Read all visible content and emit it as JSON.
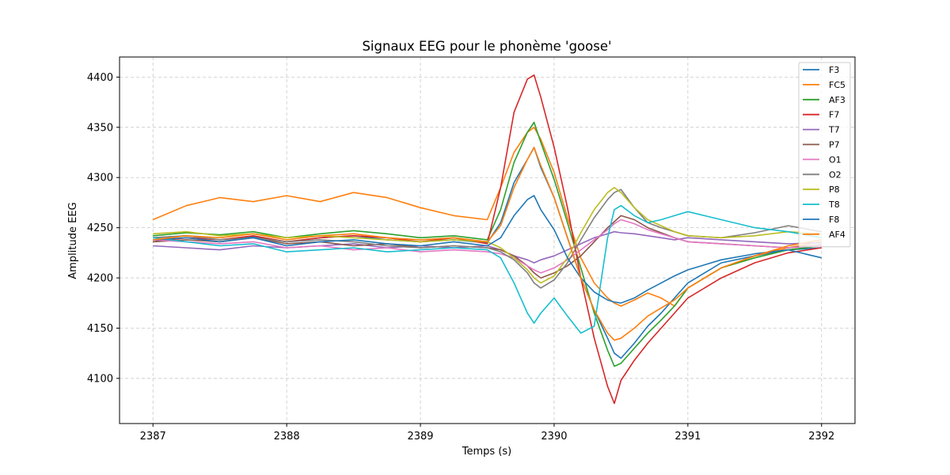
{
  "chart_data": {
    "type": "line",
    "title": "Signaux EEG pour le phonème 'goose'",
    "xlabel": "Temps (s)",
    "ylabel": "Amplitude EEG",
    "xlim": [
      2386.75,
      2392.25
    ],
    "ylim": [
      4055,
      4420
    ],
    "xticks": [
      2387,
      2388,
      2389,
      2390,
      2391,
      2392
    ],
    "yticks": [
      4100,
      4150,
      4200,
      4250,
      4300,
      4350,
      4400
    ],
    "grid": true,
    "legend_position": "top-right",
    "x": [
      2387.0,
      2387.25,
      2387.5,
      2387.75,
      2388.0,
      2388.25,
      2388.5,
      2388.75,
      2389.0,
      2389.25,
      2389.5,
      2389.6,
      2389.7,
      2389.8,
      2389.85,
      2389.9,
      2390.0,
      2390.1,
      2390.2,
      2390.3,
      2390.4,
      2390.45,
      2390.5,
      2390.6,
      2390.7,
      2390.8,
      2390.9,
      2391.0,
      2391.25,
      2391.5,
      2391.75,
      2392.0
    ],
    "series": [
      {
        "name": "F3",
        "color": "#1f77b4",
        "values": [
          4240,
          4242,
          4238,
          4241,
          4236,
          4240,
          4242,
          4238,
          4236,
          4238,
          4235,
          4255,
          4295,
          4318,
          4330,
          4310,
          4280,
          4240,
          4200,
          4168,
          4140,
          4125,
          4120,
          4135,
          4152,
          4165,
          4180,
          4195,
          4215,
          4222,
          4228,
          4230
        ]
      },
      {
        "name": "FC5",
        "color": "#ff7f0e",
        "values": [
          4258,
          4272,
          4280,
          4276,
          4282,
          4276,
          4285,
          4280,
          4270,
          4262,
          4258,
          4290,
          4325,
          4345,
          4350,
          4338,
          4305,
          4260,
          4220,
          4195,
          4180,
          4175,
          4172,
          4178,
          4185,
          4180,
          4172,
          4190,
          4210,
          4222,
          4230,
          4236
        ]
      },
      {
        "name": "AF3",
        "color": "#2ca02c",
        "values": [
          4242,
          4245,
          4243,
          4246,
          4240,
          4244,
          4247,
          4244,
          4240,
          4242,
          4238,
          4268,
          4315,
          4345,
          4355,
          4335,
          4298,
          4255,
          4210,
          4165,
          4128,
          4112,
          4115,
          4130,
          4145,
          4158,
          4172,
          4190,
          4210,
          4220,
          4228,
          4232
        ]
      },
      {
        "name": "F7",
        "color": "#d62728",
        "values": [
          4236,
          4240,
          4238,
          4242,
          4236,
          4240,
          4242,
          4240,
          4236,
          4240,
          4234,
          4290,
          4365,
          4398,
          4402,
          4380,
          4330,
          4270,
          4200,
          4140,
          4092,
          4075,
          4098,
          4118,
          4135,
          4150,
          4165,
          4180,
          4200,
          4215,
          4225,
          4230
        ]
      },
      {
        "name": "T7",
        "color": "#9467bd",
        "values": [
          4232,
          4230,
          4228,
          4232,
          4230,
          4232,
          4234,
          4230,
          4232,
          4230,
          4232,
          4228,
          4222,
          4218,
          4215,
          4218,
          4222,
          4228,
          4234,
          4240,
          4244,
          4246,
          4245,
          4244,
          4242,
          4240,
          4238,
          4240,
          4238,
          4236,
          4234,
          4235
        ]
      },
      {
        "name": "P7",
        "color": "#8c564b",
        "values": [
          4236,
          4238,
          4236,
          4240,
          4234,
          4236,
          4232,
          4234,
          4230,
          4232,
          4230,
          4228,
          4222,
          4212,
          4205,
          4200,
          4205,
          4212,
          4222,
          4236,
          4250,
          4256,
          4262,
          4258,
          4250,
          4245,
          4240,
          4236,
          4234,
          4232,
          4230,
          4233
        ]
      },
      {
        "name": "O1",
        "color": "#e377c2",
        "values": [
          4238,
          4236,
          4234,
          4236,
          4230,
          4232,
          4228,
          4230,
          4226,
          4228,
          4226,
          4224,
          4220,
          4212,
          4208,
          4205,
          4210,
          4218,
          4228,
          4238,
          4248,
          4254,
          4258,
          4254,
          4248,
          4244,
          4240,
          4236,
          4234,
          4232,
          4230,
          4232
        ]
      },
      {
        "name": "O2",
        "color": "#7f7f7f",
        "values": [
          4240,
          4242,
          4238,
          4240,
          4236,
          4238,
          4236,
          4232,
          4230,
          4232,
          4230,
          4226,
          4218,
          4205,
          4195,
          4190,
          4198,
          4215,
          4238,
          4260,
          4278,
          4285,
          4288,
          4270,
          4255,
          4250,
          4246,
          4242,
          4240,
          4245,
          4252,
          4246
        ]
      },
      {
        "name": "P8",
        "color": "#bcbd22",
        "values": [
          4244,
          4246,
          4242,
          4244,
          4240,
          4242,
          4240,
          4238,
          4236,
          4238,
          4236,
          4230,
          4220,
          4208,
          4200,
          4195,
          4202,
          4220,
          4245,
          4268,
          4285,
          4290,
          4285,
          4270,
          4258,
          4252,
          4246,
          4242,
          4240,
          4242,
          4246,
          4244
        ]
      },
      {
        "name": "T8",
        "color": "#17becf",
        "values": [
          4240,
          4236,
          4232,
          4234,
          4226,
          4228,
          4230,
          4226,
          4228,
          4230,
          4228,
          4220,
          4195,
          4165,
          4155,
          4165,
          4180,
          4162,
          4145,
          4152,
          4240,
          4268,
          4272,
          4262,
          4255,
          4258,
          4262,
          4266,
          4258,
          4250,
          4246,
          4240
        ]
      },
      {
        "name": "F8",
        "color": "#1f77b4",
        "values": [
          4238,
          4240,
          4236,
          4240,
          4232,
          4236,
          4238,
          4234,
          4232,
          4236,
          4232,
          4240,
          4262,
          4278,
          4282,
          4268,
          4248,
          4220,
          4200,
          4186,
          4178,
          4176,
          4175,
          4180,
          4188,
          4195,
          4202,
          4208,
          4218,
          4224,
          4228,
          4220
        ]
      },
      {
        "name": "AF4",
        "color": "#ff7f0e",
        "values": [
          4238,
          4242,
          4240,
          4244,
          4238,
          4242,
          4244,
          4240,
          4238,
          4240,
          4236,
          4252,
          4290,
          4318,
          4330,
          4312,
          4280,
          4240,
          4200,
          4168,
          4145,
          4138,
          4140,
          4150,
          4162,
          4170,
          4178,
          4190,
          4210,
          4222,
          4232,
          4238
        ]
      }
    ]
  }
}
